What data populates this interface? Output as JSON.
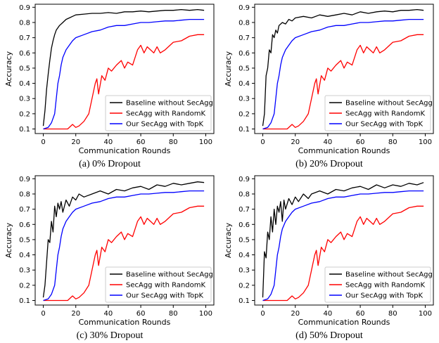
{
  "chart_data": [
    {
      "type": "line",
      "caption": "(a) 0% Dropout",
      "xlabel": "Communication Rounds",
      "ylabel": "Accuracy",
      "xlim": [
        -5,
        105
      ],
      "ylim": [
        0.07,
        0.92
      ],
      "xticks": [
        "0",
        "20",
        "40",
        "60",
        "80",
        "100"
      ],
      "yticks": [
        "0.1",
        "0.2",
        "0.3",
        "0.4",
        "0.5",
        "0.6",
        "0.7",
        "0.8",
        "0.9"
      ],
      "legend_position": "bottom-right",
      "grid": false,
      "series": [
        {
          "name": "Baseline without SecAgg",
          "color": "#000000",
          "x": [
            0,
            1,
            2,
            3,
            4,
            5,
            6,
            7,
            8,
            10,
            12,
            14,
            16,
            18,
            20,
            25,
            30,
            35,
            40,
            45,
            50,
            55,
            60,
            65,
            70,
            75,
            80,
            85,
            90,
            95,
            99
          ],
          "values": [
            0.12,
            0.22,
            0.36,
            0.46,
            0.55,
            0.63,
            0.68,
            0.72,
            0.75,
            0.78,
            0.8,
            0.82,
            0.83,
            0.84,
            0.85,
            0.855,
            0.86,
            0.86,
            0.865,
            0.86,
            0.87,
            0.87,
            0.875,
            0.87,
            0.875,
            0.88,
            0.88,
            0.885,
            0.88,
            0.885,
            0.88
          ]
        },
        {
          "name": "SecAgg with RandomK",
          "color": "#ff0000",
          "x": [
            0,
            5,
            10,
            15,
            18,
            20,
            22,
            25,
            28,
            30,
            32,
            33,
            34,
            36,
            38,
            40,
            42,
            45,
            48,
            50,
            52,
            55,
            58,
            60,
            62,
            64,
            66,
            68,
            70,
            72,
            75,
            78,
            80,
            85,
            90,
            95,
            99
          ],
          "values": [
            0.1,
            0.1,
            0.1,
            0.1,
            0.13,
            0.11,
            0.12,
            0.15,
            0.2,
            0.3,
            0.4,
            0.43,
            0.33,
            0.45,
            0.42,
            0.5,
            0.48,
            0.52,
            0.55,
            0.5,
            0.54,
            0.52,
            0.62,
            0.65,
            0.6,
            0.64,
            0.62,
            0.6,
            0.64,
            0.6,
            0.62,
            0.65,
            0.67,
            0.68,
            0.71,
            0.72,
            0.72
          ]
        },
        {
          "name": "Our SecAgg with TopK",
          "color": "#0000ff",
          "x": [
            0,
            3,
            5,
            7,
            8,
            9,
            10,
            11,
            12,
            14,
            16,
            18,
            20,
            25,
            30,
            35,
            40,
            45,
            50,
            55,
            60,
            65,
            70,
            75,
            80,
            85,
            90,
            95,
            99
          ],
          "values": [
            0.1,
            0.11,
            0.14,
            0.2,
            0.3,
            0.4,
            0.45,
            0.52,
            0.57,
            0.62,
            0.65,
            0.68,
            0.7,
            0.72,
            0.74,
            0.75,
            0.77,
            0.78,
            0.78,
            0.79,
            0.8,
            0.8,
            0.805,
            0.81,
            0.81,
            0.815,
            0.82,
            0.82,
            0.82
          ]
        }
      ]
    },
    {
      "type": "line",
      "caption": "(b) 20% Dropout",
      "xlabel": "Communication Rounds",
      "ylabel": "Accuracy",
      "xlim": [
        -5,
        105
      ],
      "ylim": [
        0.07,
        0.92
      ],
      "xticks": [
        "0",
        "20",
        "40",
        "60",
        "80",
        "100"
      ],
      "yticks": [
        "0.1",
        "0.2",
        "0.3",
        "0.4",
        "0.5",
        "0.6",
        "0.7",
        "0.8",
        "0.9"
      ],
      "legend_position": "bottom-right",
      "grid": false,
      "series": [
        {
          "name": "Baseline without SecAgg",
          "color": "#000000",
          "x": [
            0,
            1,
            2,
            3,
            4,
            5,
            6,
            7,
            8,
            9,
            10,
            12,
            14,
            16,
            18,
            20,
            25,
            30,
            35,
            40,
            45,
            50,
            55,
            60,
            65,
            70,
            75,
            80,
            85,
            90,
            95,
            99
          ],
          "values": [
            0.12,
            0.2,
            0.45,
            0.5,
            0.62,
            0.6,
            0.72,
            0.7,
            0.75,
            0.73,
            0.78,
            0.8,
            0.79,
            0.82,
            0.81,
            0.83,
            0.84,
            0.83,
            0.85,
            0.84,
            0.85,
            0.86,
            0.85,
            0.87,
            0.86,
            0.87,
            0.875,
            0.87,
            0.88,
            0.88,
            0.885,
            0.88
          ]
        },
        {
          "name": "SecAgg with RandomK",
          "color": "#ff0000",
          "x": [
            0,
            5,
            10,
            15,
            18,
            20,
            22,
            25,
            28,
            30,
            32,
            33,
            34,
            36,
            38,
            40,
            42,
            45,
            48,
            50,
            52,
            55,
            58,
            60,
            62,
            64,
            66,
            68,
            70,
            72,
            75,
            78,
            80,
            85,
            90,
            95,
            99
          ],
          "values": [
            0.1,
            0.1,
            0.1,
            0.1,
            0.13,
            0.11,
            0.12,
            0.15,
            0.2,
            0.3,
            0.4,
            0.43,
            0.33,
            0.45,
            0.42,
            0.5,
            0.48,
            0.52,
            0.55,
            0.5,
            0.54,
            0.52,
            0.62,
            0.65,
            0.6,
            0.64,
            0.62,
            0.6,
            0.64,
            0.6,
            0.62,
            0.65,
            0.67,
            0.68,
            0.71,
            0.72,
            0.72
          ]
        },
        {
          "name": "Our SecAgg with TopK",
          "color": "#0000ff",
          "x": [
            0,
            3,
            5,
            7,
            8,
            9,
            10,
            11,
            12,
            14,
            16,
            18,
            20,
            25,
            30,
            35,
            40,
            45,
            50,
            55,
            60,
            65,
            70,
            75,
            80,
            85,
            90,
            95,
            99
          ],
          "values": [
            0.1,
            0.11,
            0.14,
            0.2,
            0.3,
            0.4,
            0.45,
            0.52,
            0.57,
            0.62,
            0.65,
            0.68,
            0.7,
            0.72,
            0.74,
            0.75,
            0.77,
            0.78,
            0.78,
            0.79,
            0.8,
            0.8,
            0.805,
            0.81,
            0.81,
            0.815,
            0.82,
            0.82,
            0.82
          ]
        }
      ]
    },
    {
      "type": "line",
      "caption": "(c) 30% Dropout",
      "xlabel": "Communication Rounds",
      "ylabel": "Accuracy",
      "xlim": [
        -5,
        105
      ],
      "ylim": [
        0.07,
        0.92
      ],
      "xticks": [
        "0",
        "20",
        "40",
        "60",
        "80",
        "100"
      ],
      "yticks": [
        "0.1",
        "0.2",
        "0.3",
        "0.4",
        "0.5",
        "0.6",
        "0.7",
        "0.8",
        "0.9"
      ],
      "legend_position": "bottom-right",
      "grid": false,
      "series": [
        {
          "name": "Baseline without SecAgg",
          "color": "#000000",
          "x": [
            0,
            1,
            2,
            3,
            4,
            5,
            6,
            7,
            8,
            9,
            10,
            11,
            12,
            14,
            16,
            18,
            20,
            22,
            25,
            30,
            35,
            40,
            45,
            50,
            55,
            60,
            65,
            70,
            75,
            80,
            85,
            90,
            95,
            99
          ],
          "values": [
            0.12,
            0.2,
            0.35,
            0.5,
            0.48,
            0.62,
            0.55,
            0.72,
            0.65,
            0.74,
            0.7,
            0.75,
            0.68,
            0.76,
            0.72,
            0.78,
            0.76,
            0.8,
            0.78,
            0.8,
            0.82,
            0.8,
            0.83,
            0.82,
            0.84,
            0.85,
            0.83,
            0.86,
            0.85,
            0.87,
            0.86,
            0.87,
            0.88,
            0.875
          ]
        },
        {
          "name": "SecAgg with RandomK",
          "color": "#ff0000",
          "x": [
            0,
            5,
            10,
            15,
            18,
            20,
            22,
            25,
            28,
            30,
            32,
            33,
            34,
            36,
            38,
            40,
            42,
            45,
            48,
            50,
            52,
            55,
            58,
            60,
            62,
            64,
            66,
            68,
            70,
            72,
            75,
            78,
            80,
            85,
            90,
            95,
            99
          ],
          "values": [
            0.1,
            0.1,
            0.1,
            0.1,
            0.13,
            0.11,
            0.12,
            0.15,
            0.2,
            0.3,
            0.4,
            0.43,
            0.33,
            0.45,
            0.42,
            0.5,
            0.48,
            0.52,
            0.55,
            0.5,
            0.54,
            0.52,
            0.62,
            0.65,
            0.6,
            0.64,
            0.62,
            0.6,
            0.64,
            0.6,
            0.62,
            0.65,
            0.67,
            0.68,
            0.71,
            0.72,
            0.72
          ]
        },
        {
          "name": "Our SecAgg with TopK",
          "color": "#0000ff",
          "x": [
            0,
            3,
            5,
            7,
            8,
            9,
            10,
            11,
            12,
            14,
            16,
            18,
            20,
            25,
            30,
            35,
            40,
            45,
            50,
            55,
            60,
            65,
            70,
            75,
            80,
            85,
            90,
            95,
            99
          ],
          "values": [
            0.1,
            0.11,
            0.14,
            0.2,
            0.3,
            0.4,
            0.45,
            0.52,
            0.57,
            0.62,
            0.65,
            0.68,
            0.7,
            0.72,
            0.74,
            0.75,
            0.77,
            0.78,
            0.78,
            0.79,
            0.8,
            0.8,
            0.805,
            0.81,
            0.81,
            0.815,
            0.82,
            0.82,
            0.82
          ]
        }
      ]
    },
    {
      "type": "line",
      "caption": "(d) 50% Dropout",
      "xlabel": "Communication Rounds",
      "ylabel": "Accuracy",
      "xlim": [
        -5,
        105
      ],
      "ylim": [
        0.07,
        0.92
      ],
      "xticks": [
        "0",
        "20",
        "40",
        "60",
        "80",
        "100"
      ],
      "yticks": [
        "0.1",
        "0.2",
        "0.3",
        "0.4",
        "0.5",
        "0.6",
        "0.7",
        "0.8",
        "0.9"
      ],
      "legend_position": "bottom-right",
      "grid": false,
      "series": [
        {
          "name": "Baseline without SecAgg",
          "color": "#000000",
          "x": [
            0,
            1,
            2,
            3,
            4,
            5,
            6,
            7,
            8,
            9,
            10,
            11,
            12,
            13,
            14,
            16,
            18,
            20,
            22,
            25,
            28,
            30,
            35,
            40,
            45,
            50,
            55,
            60,
            65,
            70,
            75,
            80,
            85,
            90,
            95,
            99
          ],
          "values": [
            0.12,
            0.42,
            0.38,
            0.55,
            0.5,
            0.65,
            0.55,
            0.7,
            0.6,
            0.72,
            0.68,
            0.75,
            0.62,
            0.76,
            0.7,
            0.77,
            0.73,
            0.78,
            0.75,
            0.8,
            0.77,
            0.8,
            0.82,
            0.8,
            0.83,
            0.82,
            0.84,
            0.85,
            0.83,
            0.86,
            0.84,
            0.86,
            0.85,
            0.87,
            0.86,
            0.875
          ]
        },
        {
          "name": "SecAgg with RandomK",
          "color": "#ff0000",
          "x": [
            0,
            5,
            10,
            15,
            18,
            20,
            22,
            25,
            28,
            30,
            32,
            33,
            34,
            36,
            38,
            40,
            42,
            45,
            48,
            50,
            52,
            55,
            58,
            60,
            62,
            64,
            66,
            68,
            70,
            72,
            75,
            78,
            80,
            85,
            90,
            95,
            99
          ],
          "values": [
            0.1,
            0.1,
            0.1,
            0.1,
            0.13,
            0.11,
            0.12,
            0.15,
            0.2,
            0.3,
            0.4,
            0.43,
            0.33,
            0.45,
            0.42,
            0.5,
            0.48,
            0.52,
            0.55,
            0.5,
            0.54,
            0.52,
            0.62,
            0.65,
            0.6,
            0.64,
            0.62,
            0.6,
            0.64,
            0.6,
            0.62,
            0.65,
            0.67,
            0.68,
            0.71,
            0.72,
            0.72
          ]
        },
        {
          "name": "Our SecAgg with TopK",
          "color": "#0000ff",
          "x": [
            0,
            3,
            5,
            7,
            8,
            9,
            10,
            11,
            12,
            14,
            16,
            18,
            20,
            25,
            30,
            35,
            40,
            45,
            50,
            55,
            60,
            65,
            70,
            75,
            80,
            85,
            90,
            95,
            99
          ],
          "values": [
            0.1,
            0.11,
            0.14,
            0.2,
            0.3,
            0.4,
            0.45,
            0.52,
            0.57,
            0.62,
            0.65,
            0.68,
            0.7,
            0.72,
            0.74,
            0.75,
            0.77,
            0.78,
            0.78,
            0.79,
            0.8,
            0.8,
            0.805,
            0.81,
            0.81,
            0.815,
            0.82,
            0.82,
            0.82
          ]
        }
      ]
    }
  ]
}
